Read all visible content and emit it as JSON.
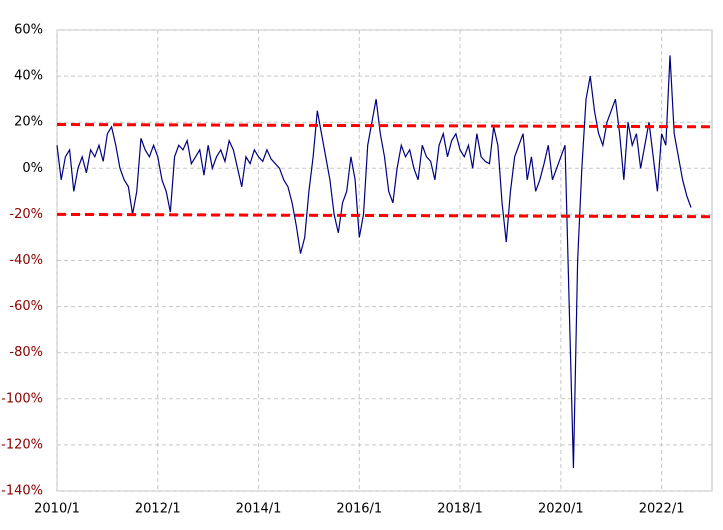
{
  "chart_data": {
    "type": "line",
    "x": [
      "2010/1",
      "2010/2",
      "2010/3",
      "2010/4",
      "2010/5",
      "2010/6",
      "2010/7",
      "2010/8",
      "2010/9",
      "2010/10",
      "2010/11",
      "2010/12",
      "2011/1",
      "2011/2",
      "2011/3",
      "2011/4",
      "2011/5",
      "2011/6",
      "2011/7",
      "2011/8",
      "2011/9",
      "2011/10",
      "2011/11",
      "2011/12",
      "2012/1",
      "2012/2",
      "2012/3",
      "2012/4",
      "2012/5",
      "2012/6",
      "2012/7",
      "2012/8",
      "2012/9",
      "2012/10",
      "2012/11",
      "2012/12",
      "2013/1",
      "2013/2",
      "2013/3",
      "2013/4",
      "2013/5",
      "2013/6",
      "2013/7",
      "2013/8",
      "2013/9",
      "2013/10",
      "2013/11",
      "2013/12",
      "2014/1",
      "2014/2",
      "2014/3",
      "2014/4",
      "2014/5",
      "2014/6",
      "2014/7",
      "2014/8",
      "2014/9",
      "2014/10",
      "2014/11",
      "2014/12",
      "2015/1",
      "2015/2",
      "2015/3",
      "2015/4",
      "2015/5",
      "2015/6",
      "2015/7",
      "2015/8",
      "2015/9",
      "2015/10",
      "2015/11",
      "2015/12",
      "2016/1",
      "2016/2",
      "2016/3",
      "2016/4",
      "2016/5",
      "2016/6",
      "2016/7",
      "2016/8",
      "2016/9",
      "2016/10",
      "2016/11",
      "2016/12",
      "2017/1",
      "2017/2",
      "2017/3",
      "2017/4",
      "2017/5",
      "2017/6",
      "2017/7",
      "2017/8",
      "2017/9",
      "2017/10",
      "2017/11",
      "2017/12",
      "2018/1",
      "2018/2",
      "2018/3",
      "2018/4",
      "2018/5",
      "2018/6",
      "2018/7",
      "2018/8",
      "2018/9",
      "2018/10",
      "2018/11",
      "2018/12",
      "2019/1",
      "2019/2",
      "2019/3",
      "2019/4",
      "2019/5",
      "2019/6",
      "2019/7",
      "2019/8",
      "2019/9",
      "2019/10",
      "2019/11",
      "2019/12",
      "2020/1",
      "2020/2",
      "2020/3",
      "2020/4",
      "2020/5",
      "2020/6",
      "2020/7",
      "2020/8",
      "2020/9",
      "2020/10",
      "2020/11",
      "2020/12",
      "2021/1",
      "2021/2",
      "2021/3",
      "2021/4",
      "2021/5",
      "2021/6",
      "2021/7",
      "2021/8",
      "2021/9",
      "2021/10",
      "2021/11",
      "2021/12",
      "2022/1",
      "2022/2",
      "2022/3",
      "2022/4",
      "2022/5",
      "2022/6",
      "2022/7",
      "2022/8"
    ],
    "series": [
      {
        "color": "#000080",
        "values": [
          10,
          -5,
          5,
          8,
          -10,
          0,
          5,
          -2,
          8,
          5,
          10,
          3,
          15,
          18,
          10,
          0,
          -5,
          -8,
          -20,
          -10,
          13,
          8,
          5,
          10,
          5,
          -5,
          -10,
          -19,
          5,
          10,
          8,
          12,
          2,
          5,
          8,
          -3,
          10,
          0,
          5,
          8,
          3,
          12,
          8,
          0,
          -8,
          5,
          2,
          8,
          5,
          3,
          8,
          4,
          2,
          0,
          -5,
          -8,
          -15,
          -25,
          -37,
          -30,
          -10,
          5,
          25,
          15,
          5,
          -5,
          -20,
          -28,
          -15,
          -10,
          5,
          -5,
          -30,
          -20,
          10,
          20,
          30,
          15,
          5,
          -10,
          -15,
          0,
          10,
          5,
          8,
          0,
          -5,
          10,
          5,
          3,
          -5,
          10,
          15,
          5,
          12,
          15,
          8,
          5,
          10,
          0,
          15,
          5,
          3,
          2,
          18,
          10,
          -15,
          -32,
          -10,
          5,
          10,
          15,
          -5,
          5,
          -10,
          -5,
          2,
          10,
          -5,
          0,
          5,
          10,
          -60,
          -130,
          -40,
          0,
          30,
          40,
          25,
          15,
          10,
          20,
          25,
          30,
          15,
          -5,
          20,
          10,
          15,
          0,
          10,
          20,
          5,
          -10,
          15,
          10,
          49,
          15,
          5,
          -5,
          -12,
          -17
        ]
      }
    ],
    "reference_lines": [
      {
        "values": [
          19,
          18
        ],
        "color": "#ff0000"
      },
      {
        "values": [
          -20,
          -21
        ],
        "color": "#ff0000"
      }
    ],
    "xlim": [
      "2010/1",
      "2023/1"
    ],
    "xticks": [
      "2010/1",
      "2012/1",
      "2014/1",
      "2016/1",
      "2018/1",
      "2020/1",
      "2022/1"
    ],
    "ylim": [
      -140,
      60
    ],
    "yticks": [
      {
        "value": 60,
        "label": "60%"
      },
      {
        "value": 40,
        "label": "40%"
      },
      {
        "value": 20,
        "label": "20%"
      },
      {
        "value": 0,
        "label": "0%"
      },
      {
        "value": -20,
        "label": "-20%"
      },
      {
        "value": -40,
        "label": "-40%"
      },
      {
        "value": -60,
        "label": "-60%"
      },
      {
        "value": -80,
        "label": "-80%"
      },
      {
        "value": -100,
        "label": "-100%"
      },
      {
        "value": -120,
        "label": "-120%"
      },
      {
        "value": -140,
        "label": "-140%"
      }
    ],
    "negative_tick_color": "#8b0000",
    "grid": true
  }
}
